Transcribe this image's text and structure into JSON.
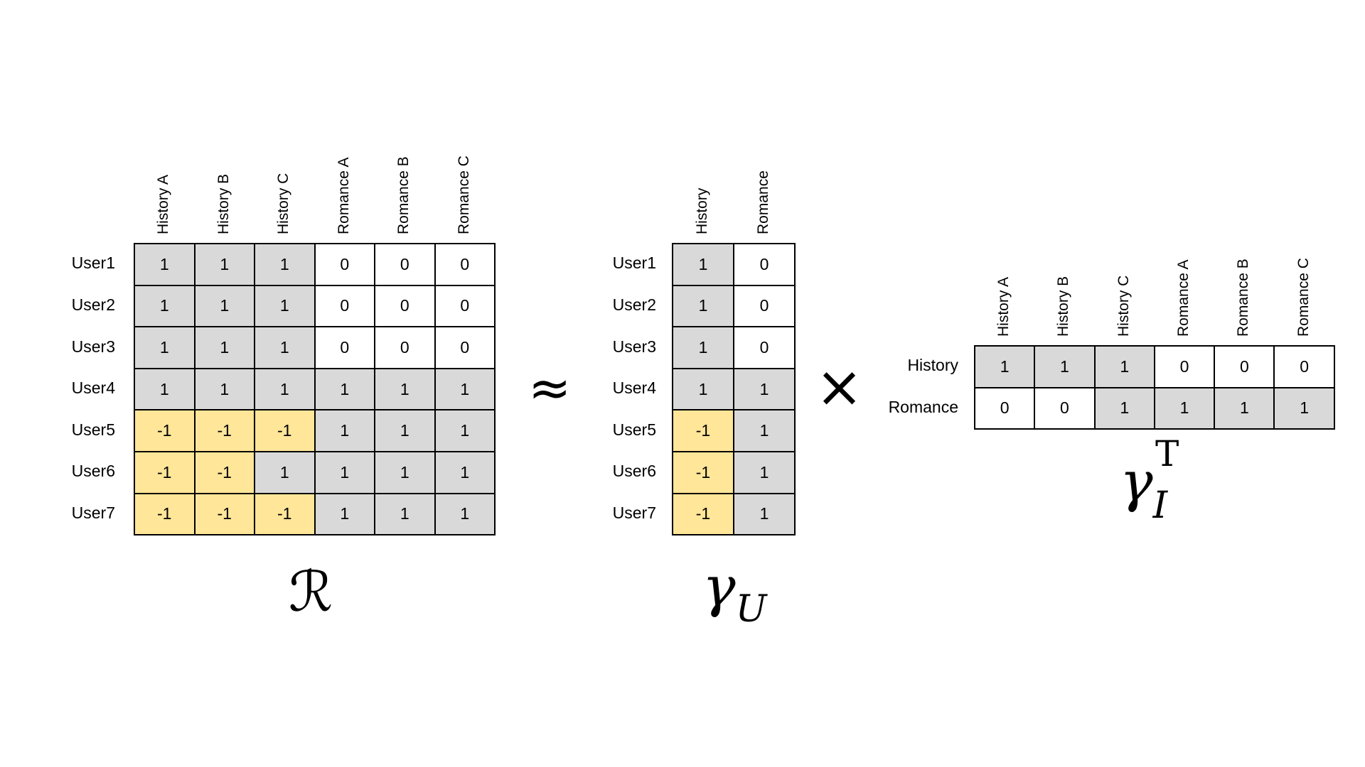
{
  "R": {
    "symbol": "ℛ",
    "columns": [
      "History A",
      "History B",
      "History C",
      "Romance A",
      "Romance B",
      "Romance C"
    ],
    "rows": [
      "User1",
      "User2",
      "User3",
      "User4",
      "User5",
      "User6",
      "User7"
    ],
    "values": [
      [
        "1",
        "1",
        "1",
        "0",
        "0",
        "0"
      ],
      [
        "1",
        "1",
        "1",
        "0",
        "0",
        "0"
      ],
      [
        "1",
        "1",
        "1",
        "0",
        "0",
        "0"
      ],
      [
        "1",
        "1",
        "1",
        "1",
        "1",
        "1"
      ],
      [
        "-1",
        "-1",
        "-1",
        "1",
        "1",
        "1"
      ],
      [
        "-1",
        "-1",
        "1",
        "1",
        "1",
        "1"
      ],
      [
        "-1",
        "-1",
        "-1",
        "1",
        "1",
        "1"
      ]
    ]
  },
  "approx_symbol": "≈",
  "GU": {
    "symbol": "γ",
    "subscript": "U",
    "columns": [
      "History",
      "Romance"
    ],
    "rows": [
      "User1",
      "User2",
      "User3",
      "User4",
      "User5",
      "User6",
      "User7"
    ],
    "values": [
      [
        "1",
        "0"
      ],
      [
        "1",
        "0"
      ],
      [
        "1",
        "0"
      ],
      [
        "1",
        "1"
      ],
      [
        "-1",
        "1"
      ],
      [
        "-1",
        "1"
      ],
      [
        "-1",
        "1"
      ]
    ]
  },
  "times_symbol": "×",
  "GI": {
    "symbol": "γ",
    "subscript": "I",
    "superscript": "T",
    "columns": [
      "History A",
      "History B",
      "History C",
      "Romance A",
      "Romance B",
      "Romance C"
    ],
    "rows": [
      "History",
      "Romance"
    ],
    "values": [
      [
        "1",
        "1",
        "1",
        "0",
        "0",
        "0"
      ],
      [
        "0",
        "0",
        "1",
        "1",
        "1",
        "1"
      ]
    ]
  },
  "colors": {
    "positive": "#d9d9d9",
    "negative": "#ffe699",
    "zero": "#ffffff"
  }
}
